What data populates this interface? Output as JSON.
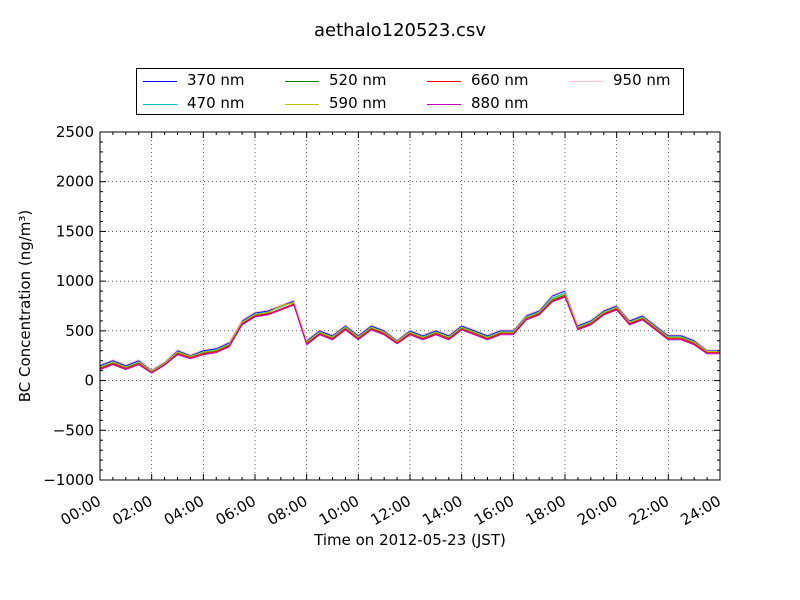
{
  "chart_data": {
    "type": "line",
    "title": "aethalo120523.csv",
    "xlabel": "Time on 2012-05-23 (JST)",
    "ylabel": "BC Concentration (ng/m³)",
    "ylim": [
      -1000,
      2500
    ],
    "xlim_hours": [
      0,
      24
    ],
    "yticks": [
      "−1000",
      "−500",
      "0",
      "500",
      "1000",
      "1500",
      "2000",
      "2500"
    ],
    "xticks": [
      "00:00",
      "02:00",
      "04:00",
      "06:00",
      "08:00",
      "10:00",
      "12:00",
      "14:00",
      "16:00",
      "18:00",
      "20:00",
      "22:00",
      "24:00"
    ],
    "grid": true,
    "legend_position": "top, above plot",
    "x_hours": [
      0,
      0.5,
      1,
      1.5,
      2,
      2.5,
      3,
      3.5,
      4,
      4.5,
      5,
      5.5,
      6,
      6.5,
      7,
      7.5,
      8,
      8.5,
      9,
      9.5,
      10,
      10.5,
      11,
      11.5,
      12,
      12.5,
      13,
      13.5,
      14,
      14.5,
      15,
      15.5,
      16,
      16.5,
      17,
      17.5,
      18,
      18.5,
      19,
      19.5,
      20,
      20.5,
      21,
      21.5,
      22,
      22.5,
      23,
      23.5,
      24
    ],
    "series": [
      {
        "name": "370 nm",
        "color": "#0000ff",
        "values": [
          150,
          200,
          150,
          200,
          100,
          180,
          300,
          250,
          300,
          320,
          380,
          600,
          680,
          700,
          750,
          800,
          400,
          500,
          450,
          550,
          450,
          550,
          500,
          400,
          500,
          450,
          500,
          450,
          550,
          500,
          450,
          500,
          500,
          650,
          700,
          850,
          900,
          550,
          600,
          700,
          750,
          600,
          650,
          550,
          450,
          450,
          400,
          300,
          300
        ]
      },
      {
        "name": "470 nm",
        "color": "#00bfbf",
        "values": [
          140,
          190,
          140,
          190,
          95,
          175,
          290,
          245,
          290,
          310,
          370,
          590,
          670,
          690,
          740,
          790,
          390,
          490,
          440,
          540,
          440,
          540,
          490,
          395,
          490,
          440,
          490,
          440,
          540,
          490,
          440,
          490,
          490,
          640,
          690,
          830,
          880,
          540,
          590,
          690,
          740,
          590,
          640,
          540,
          440,
          440,
          390,
          295,
          295
        ]
      },
      {
        "name": "520 nm",
        "color": "#008000",
        "values": [
          130,
          180,
          130,
          180,
          90,
          170,
          280,
          240,
          280,
          300,
          360,
          580,
          660,
          680,
          760,
          780,
          380,
          480,
          430,
          530,
          430,
          530,
          480,
          390,
          480,
          430,
          480,
          430,
          530,
          480,
          430,
          480,
          480,
          630,
          680,
          810,
          860,
          530,
          580,
          680,
          730,
          580,
          630,
          530,
          430,
          430,
          380,
          290,
          290
        ]
      },
      {
        "name": "590 nm",
        "color": "#bfbf00",
        "values": [
          135,
          185,
          135,
          185,
          92,
          172,
          285,
          242,
          285,
          305,
          365,
          585,
          665,
          685,
          750,
          785,
          385,
          485,
          435,
          535,
          435,
          535,
          485,
          392,
          485,
          435,
          485,
          435,
          535,
          485,
          435,
          485,
          485,
          635,
          685,
          820,
          870,
          535,
          585,
          685,
          735,
          585,
          635,
          535,
          435,
          435,
          385,
          292,
          292
        ]
      },
      {
        "name": "660 nm",
        "color": "#ff0000",
        "values": [
          120,
          170,
          120,
          170,
          80,
          160,
          270,
          230,
          270,
          290,
          350,
          570,
          650,
          670,
          720,
          770,
          370,
          470,
          420,
          520,
          420,
          520,
          470,
          380,
          470,
          420,
          470,
          420,
          520,
          470,
          420,
          470,
          470,
          620,
          670,
          800,
          850,
          520,
          570,
          670,
          720,
          570,
          620,
          520,
          420,
          420,
          370,
          280,
          280
        ]
      },
      {
        "name": "880 nm",
        "color": "#bf00bf",
        "values": [
          110,
          160,
          110,
          160,
          75,
          155,
          260,
          220,
          260,
          280,
          340,
          560,
          640,
          660,
          710,
          760,
          360,
          460,
          410,
          510,
          410,
          510,
          460,
          370,
          460,
          410,
          460,
          410,
          510,
          460,
          410,
          460,
          460,
          610,
          660,
          790,
          840,
          510,
          560,
          660,
          710,
          560,
          610,
          510,
          410,
          410,
          360,
          270,
          270
        ]
      },
      {
        "name": "950 nm",
        "color": "#ffc0cb",
        "values": [
          160,
          210,
          160,
          210,
          110,
          190,
          310,
          260,
          310,
          330,
          390,
          610,
          690,
          710,
          760,
          810,
          410,
          510,
          460,
          560,
          460,
          560,
          510,
          410,
          510,
          460,
          510,
          460,
          560,
          510,
          460,
          510,
          510,
          660,
          710,
          860,
          910,
          560,
          610,
          710,
          760,
          610,
          660,
          560,
          460,
          460,
          410,
          310,
          310
        ]
      }
    ]
  }
}
